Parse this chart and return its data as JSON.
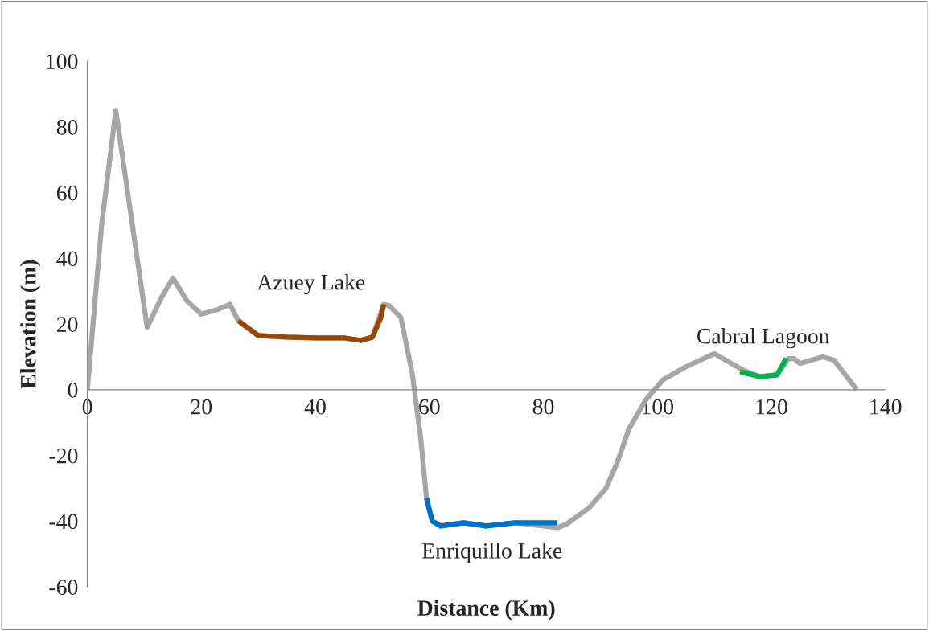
{
  "chart_data": {
    "type": "line",
    "xlabel": "Distance (Km)",
    "ylabel": "Elevation (m)",
    "xlim": [
      0,
      140
    ],
    "xticks": [
      0,
      20,
      40,
      60,
      80,
      100,
      120,
      140
    ],
    "ylim": [
      -60,
      100
    ],
    "yticks": [
      -60,
      -40,
      -20,
      0,
      20,
      40,
      60,
      80,
      100
    ],
    "grid": false,
    "legend": false,
    "marker": "none",
    "line_style": "solid",
    "series": [
      {
        "color": "#a6a6a6",
        "x": [
          0,
          2.5,
          5,
          7.5,
          10.5,
          13,
          15,
          17.5,
          20,
          23,
          25,
          26.5,
          30,
          35,
          40,
          45,
          48,
          50,
          52,
          53,
          55,
          57,
          58.5,
          59.5,
          60.5,
          62,
          66,
          70,
          75,
          82.5,
          84,
          88,
          91,
          93,
          95,
          98,
          101,
          105,
          110,
          115,
          118,
          121,
          123,
          124,
          125,
          129,
          131,
          135
        ],
        "values": [
          0,
          50,
          85,
          55,
          19,
          28,
          34,
          27,
          23,
          24.5,
          26,
          21,
          16.5,
          16,
          15.8,
          15.8,
          15,
          16,
          26,
          25.5,
          22,
          5,
          -15,
          -33,
          -40,
          -41.5,
          -40.5,
          -41.5,
          -40.5,
          -42,
          -41,
          -36,
          -30,
          -22,
          -12,
          -3,
          3,
          7,
          11,
          6,
          4,
          4.5,
          9.5,
          9.5,
          8,
          10,
          9,
          0
        ]
      },
      {
        "name": "Azuey Lake",
        "color": "#974706",
        "x": [
          26.5,
          28,
          30,
          35,
          40,
          45,
          48,
          50,
          51.5,
          52
        ],
        "values": [
          21,
          19,
          16.5,
          16,
          15.8,
          15.8,
          15,
          16,
          22,
          26
        ]
      },
      {
        "name": "Enriquillo Lake",
        "color": "#0070c0",
        "x": [
          59.5,
          60.5,
          62,
          66,
          70,
          75,
          82.5
        ],
        "values": [
          -33,
          -40,
          -41.5,
          -40.5,
          -41.5,
          -40.5,
          -40.5
        ]
      },
      {
        "name": "Cabral Lagoon",
        "color": "#00b050",
        "x": [
          114.5,
          118,
          121,
          122.6
        ],
        "values": [
          5.5,
          4,
          4.5,
          9.6
        ]
      }
    ]
  }
}
